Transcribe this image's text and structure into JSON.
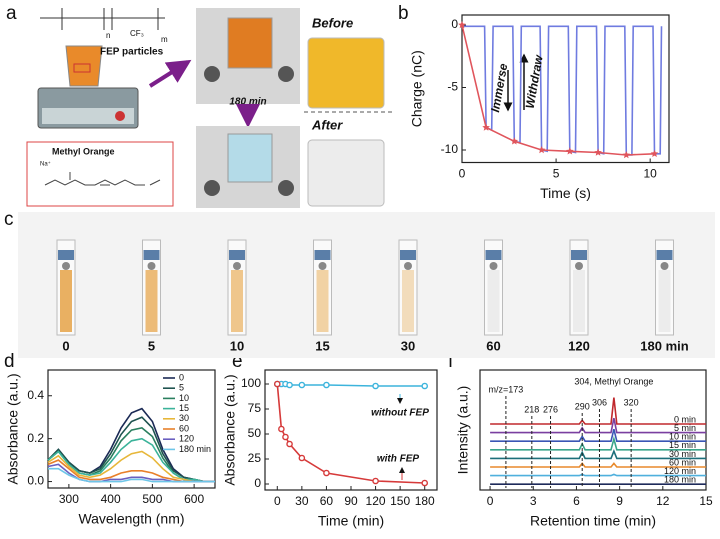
{
  "panel_labels": [
    "a",
    "b",
    "c",
    "d",
    "e",
    "f"
  ],
  "panel_a": {
    "formula_n": "n",
    "formula_m": "m",
    "formula_cf3": "CF₃",
    "particles_label": "FEP particles",
    "dye_label": "Methyl Orange",
    "ion_label": "Na⁺",
    "before": "Before",
    "after": "After",
    "time": "180 min"
  },
  "panel_c": {
    "labels": [
      "0",
      "5",
      "10",
      "15",
      "30",
      "60",
      "120",
      "180 min"
    ],
    "colors": [
      "#e9b062",
      "#ecbb78",
      "#efc68c",
      "#f1d2a4",
      "#f2dcbb",
      "#ececec",
      "#ececec",
      "#ececec"
    ]
  },
  "chart_data": [
    {
      "type": "line",
      "xlabel": "Time (s)",
      "ylabel": "Charge (nC)",
      "xlim": [
        0,
        11
      ],
      "ylim": [
        -11,
        0.8
      ],
      "xticks": [
        0,
        5,
        10
      ],
      "yticks": [
        0,
        -5,
        -10
      ],
      "annotations": [
        "Immerse",
        "Withdraw"
      ],
      "series": [
        {
          "color": "#6f7be0",
          "x": [
            0,
            1.2,
            1.28,
            1.58,
            1.65,
            2.7,
            2.78,
            3.08,
            3.15,
            4.15,
            4.23,
            4.53,
            4.6,
            5.65,
            5.73,
            6.03,
            6.1,
            7.15,
            7.23,
            7.53,
            7.6,
            8.65,
            8.73,
            9.03,
            9.1,
            10.15,
            10.23,
            10.53,
            10.6
          ],
          "values": [
            -0.1,
            -0.1,
            -8.2,
            -8.4,
            -0.1,
            -0.1,
            -9.3,
            -9.4,
            -0.1,
            -0.1,
            -10.0,
            -10.1,
            -0.1,
            -0.1,
            -10.1,
            -10.2,
            -0.1,
            -0.1,
            -10.2,
            -10.3,
            -0.1,
            -0.1,
            -10.4,
            -10.4,
            -0.1,
            -0.1,
            -10.3,
            -10.3,
            -0.1
          ]
        },
        {
          "color": "#e0555c",
          "marker": "star",
          "x": [
            0,
            1.28,
            2.78,
            4.23,
            5.73,
            7.23,
            8.73,
            10.23
          ],
          "values": [
            0,
            -8.2,
            -9.3,
            -10.0,
            -10.1,
            -10.2,
            -10.4,
            -10.3
          ]
        }
      ]
    },
    {
      "type": "line",
      "xlabel": "Wavelength (nm)",
      "ylabel": "Absorbance (a.u.)",
      "xlim": [
        250,
        650
      ],
      "ylim": [
        -0.03,
        0.52
      ],
      "xticks": [
        300,
        400,
        500,
        600
      ],
      "yticks": [
        {
          "value": 0,
          "label": "0.0"
        },
        {
          "value": 0.2,
          "label": "0.2"
        },
        {
          "value": 0.4,
          "label": "0.4"
        }
      ],
      "legend": "upper right",
      "x": [
        250,
        275,
        300,
        325,
        350,
        375,
        400,
        425,
        450,
        475,
        500,
        525,
        550,
        575,
        600,
        625,
        650
      ],
      "series": [
        {
          "name": "0",
          "color": "#1b2a55",
          "values": [
            0.1,
            0.15,
            0.09,
            0.05,
            0.04,
            0.07,
            0.15,
            0.25,
            0.32,
            0.34,
            0.28,
            0.15,
            0.06,
            0.02,
            0.01,
            0,
            0
          ]
        },
        {
          "name": "5",
          "color": "#1f5450",
          "values": [
            0.1,
            0.15,
            0.09,
            0.05,
            0.04,
            0.06,
            0.13,
            0.22,
            0.28,
            0.3,
            0.25,
            0.13,
            0.05,
            0.02,
            0.01,
            0,
            0
          ]
        },
        {
          "name": "10",
          "color": "#2a7f5f",
          "values": [
            0.1,
            0.14,
            0.08,
            0.04,
            0.03,
            0.05,
            0.11,
            0.19,
            0.24,
            0.25,
            0.21,
            0.11,
            0.04,
            0.01,
            0.01,
            0,
            0
          ]
        },
        {
          "name": "15",
          "color": "#3bb39a",
          "values": [
            0.1,
            0.14,
            0.08,
            0.04,
            0.03,
            0.04,
            0.09,
            0.15,
            0.19,
            0.2,
            0.17,
            0.09,
            0.04,
            0.01,
            0.01,
            0,
            0
          ]
        },
        {
          "name": "30",
          "color": "#e7b73a",
          "values": [
            0.09,
            0.12,
            0.07,
            0.03,
            0.02,
            0.03,
            0.06,
            0.1,
            0.13,
            0.14,
            0.11,
            0.06,
            0.02,
            0.01,
            0,
            0,
            0
          ]
        },
        {
          "name": "60",
          "color": "#e8802a",
          "values": [
            0.08,
            0.1,
            0.06,
            0.02,
            0.01,
            0.01,
            0.02,
            0.04,
            0.05,
            0.05,
            0.04,
            0.02,
            0.01,
            0,
            0,
            0,
            0
          ]
        },
        {
          "name": "120",
          "color": "#6a5fc0",
          "values": [
            0.07,
            0.08,
            0.04,
            0.01,
            0,
            0,
            0.01,
            0.01,
            0.02,
            0.02,
            0.01,
            0.01,
            0,
            0,
            0,
            0,
            0
          ]
        },
        {
          "name": "180 min",
          "color": "#6ec6e8",
          "values": [
            0.06,
            0.06,
            0.03,
            0.01,
            0,
            0,
            0,
            0,
            0.01,
            0.01,
            0,
            0,
            0,
            0,
            0,
            0,
            0
          ]
        }
      ]
    },
    {
      "type": "line",
      "xlabel": "Time (min)",
      "ylabel": "Absorbance (a.u.)",
      "xlim": [
        -15,
        195
      ],
      "ylim": [
        -6,
        114
      ],
      "xticks": [
        0,
        30,
        60,
        90,
        120,
        150,
        180
      ],
      "yticks": [
        0,
        25,
        50,
        75,
        100
      ],
      "x": [
        0,
        5,
        10,
        15,
        30,
        60,
        120,
        180
      ],
      "series": [
        {
          "name": "without FEP",
          "color": "#3cb4dc",
          "marker": "circle",
          "values": [
            100,
            100,
            100,
            99,
            99,
            99,
            98,
            98
          ]
        },
        {
          "name": "with FEP",
          "color": "#d63a3a",
          "marker": "circle",
          "values": [
            100,
            55,
            47,
            40,
            26,
            11,
            3,
            1
          ]
        }
      ]
    },
    {
      "type": "line",
      "offset": true,
      "xlabel": "Retention time (min)",
      "ylabel": "Intensity (a.u.)",
      "xlim": [
        -0.7,
        15
      ],
      "xticks": [
        0,
        3,
        6,
        9,
        12,
        15
      ],
      "annotations": [
        {
          "text": "m/z=173",
          "x": 1.1
        },
        {
          "text": "218",
          "x": 2.9
        },
        {
          "text": "276",
          "x": 4.2
        },
        {
          "text": "290",
          "x": 6.4
        },
        {
          "text": "306",
          "x": 7.6
        },
        {
          "text": "304, Methyl Orange",
          "x": 8.6
        },
        {
          "text": "320",
          "x": 9.8
        }
      ],
      "x": [
        0,
        6.2,
        6.4,
        6.6,
        8.4,
        8.6,
        8.8,
        15
      ],
      "series": [
        {
          "name": "0 min",
          "color": "#c0282d",
          "values": [
            0,
            0,
            0.3,
            0,
            0,
            2.2,
            0,
            0
          ]
        },
        {
          "name": "5 min",
          "color": "#7a3fa0",
          "values": [
            0,
            0,
            0.4,
            0,
            0,
            1.2,
            0,
            0
          ]
        },
        {
          "name": "10 min",
          "color": "#3a56b5",
          "values": [
            0,
            0,
            0.4,
            0,
            0,
            1.0,
            0,
            0
          ]
        },
        {
          "name": "15 min",
          "color": "#3aa58a",
          "values": [
            0,
            0,
            0.5,
            0,
            0,
            0.9,
            0,
            0
          ]
        },
        {
          "name": "30 min",
          "color": "#1c6f7a",
          "values": [
            0,
            0,
            0.5,
            0,
            0,
            0.6,
            0,
            0
          ]
        },
        {
          "name": "60 min",
          "color": "#e8892b",
          "values": [
            0,
            0,
            0.3,
            0,
            0,
            0.3,
            0,
            0
          ]
        },
        {
          "name": "120 min",
          "color": "#4fb0dd",
          "values": [
            0,
            0,
            0.1,
            0,
            0,
            0.1,
            0,
            0
          ]
        },
        {
          "name": "180 min",
          "color": "#1e2a5a",
          "values": [
            0,
            0,
            0,
            0,
            0,
            0,
            0,
            0
          ]
        }
      ]
    }
  ]
}
